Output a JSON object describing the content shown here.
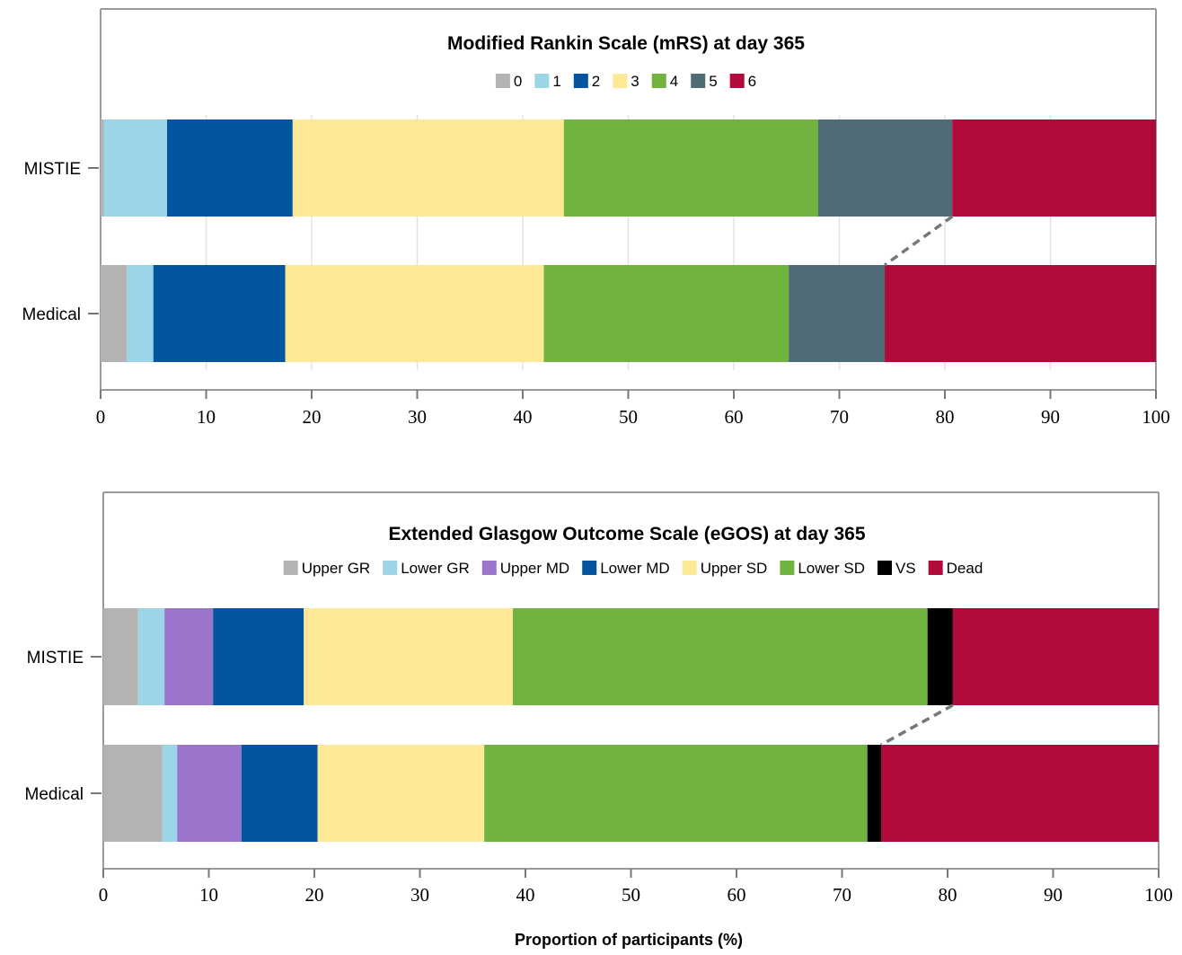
{
  "xlabel": "Proportion of participants (%)",
  "chart_data": [
    {
      "type": "bar",
      "orientation": "horizontal",
      "stacked": true,
      "title": "Modified Rankin Scale (mRS) at day 365",
      "categories": [
        "MISTIE",
        "Medical"
      ],
      "xlim": [
        0,
        100
      ],
      "xticks": [
        "0",
        "10",
        "20",
        "30",
        "40",
        "50",
        "60",
        "70",
        "80",
        "90",
        "100"
      ],
      "grid": true,
      "legend_position": "top",
      "series": [
        {
          "name": "0",
          "color": "#b3b3b3",
          "values": [
            0.3,
            2.5
          ]
        },
        {
          "name": "1",
          "color": "#9dd5e8",
          "values": [
            6.0,
            2.5
          ]
        },
        {
          "name": "2",
          "color": "#02559e",
          "values": [
            11.9,
            12.5
          ]
        },
        {
          "name": "3",
          "color": "#fde995",
          "values": [
            25.7,
            24.5
          ]
        },
        {
          "name": "4",
          "color": "#70b33f",
          "values": [
            24.1,
            23.2
          ]
        },
        {
          "name": "5",
          "color": "#4f6b76",
          "values": [
            12.7,
            9.1
          ]
        },
        {
          "name": "6",
          "color": "#b00b3a",
          "values": [
            19.3,
            25.7
          ]
        }
      ]
    },
    {
      "type": "bar",
      "orientation": "horizontal",
      "stacked": true,
      "title": "Extended Glasgow Outcome Scale (eGOS) at day 365",
      "categories": [
        "MISTIE",
        "Medical"
      ],
      "xlim": [
        0,
        100
      ],
      "xticks": [
        "0",
        "10",
        "20",
        "30",
        "40",
        "50",
        "60",
        "70",
        "80",
        "90",
        "100"
      ],
      "grid": false,
      "legend_position": "top",
      "series": [
        {
          "name": "Upper GR",
          "color": "#b3b3b3",
          "values": [
            3.3,
            5.6
          ]
        },
        {
          "name": "Lower GR",
          "color": "#9dd5e8",
          "values": [
            2.5,
            1.4
          ]
        },
        {
          "name": "Upper MD",
          "color": "#9b75cc",
          "values": [
            4.6,
            6.1
          ]
        },
        {
          "name": "Lower MD",
          "color": "#02559e",
          "values": [
            8.6,
            7.2
          ]
        },
        {
          "name": "Upper SD",
          "color": "#fde995",
          "values": [
            19.8,
            15.8
          ]
        },
        {
          "name": "Lower SD",
          "color": "#70b33f",
          "values": [
            39.3,
            36.3
          ]
        },
        {
          "name": "VS",
          "color": "#000000",
          "values": [
            2.4,
            1.3
          ]
        },
        {
          "name": "Dead",
          "color": "#b00b3a",
          "values": [
            19.5,
            26.3
          ]
        }
      ]
    }
  ]
}
